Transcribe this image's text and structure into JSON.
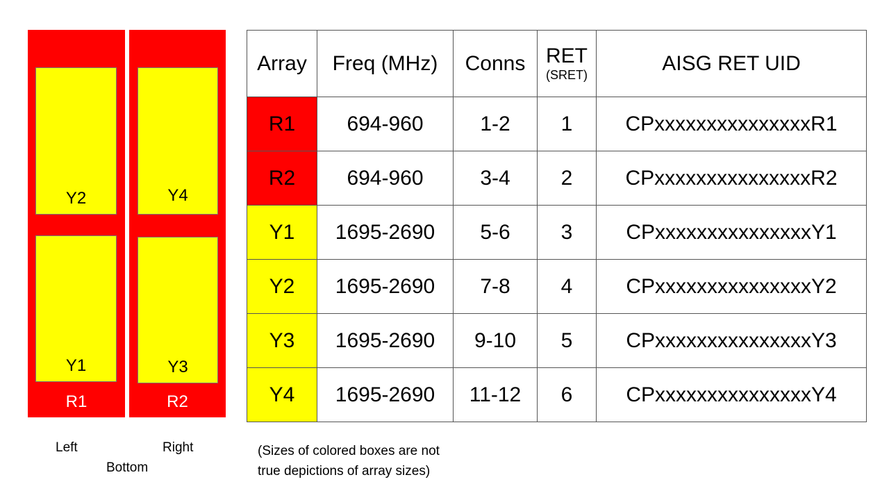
{
  "colors": {
    "red": "#ff0000",
    "yellow": "#ffff00"
  },
  "diagram": {
    "left_panel": {
      "label": "R1",
      "inner": [
        "Y2",
        "Y1"
      ]
    },
    "right_panel": {
      "label": "R2",
      "inner": [
        "Y4",
        "Y3"
      ]
    },
    "captions": {
      "left": "Left",
      "right": "Right",
      "bottom": "Bottom"
    }
  },
  "table": {
    "headers": {
      "array": "Array",
      "freq": "Freq (MHz)",
      "conns": "Conns",
      "ret": "RET",
      "ret_sub": "(SRET)",
      "uid": "AISG RET UID"
    },
    "rows": [
      {
        "array": "R1",
        "color": "#ff0000",
        "freq": "694-960",
        "conns": "1-2",
        "ret": "1",
        "uid": "CPxxxxxxxxxxxxxxxR1"
      },
      {
        "array": "R2",
        "color": "#ff0000",
        "freq": "694-960",
        "conns": "3-4",
        "ret": "2",
        "uid": "CPxxxxxxxxxxxxxxxR2"
      },
      {
        "array": "Y1",
        "color": "#ffff00",
        "freq": "1695-2690",
        "conns": "5-6",
        "ret": "3",
        "uid": "CPxxxxxxxxxxxxxxxY1"
      },
      {
        "array": "Y2",
        "color": "#ffff00",
        "freq": "1695-2690",
        "conns": "7-8",
        "ret": "4",
        "uid": "CPxxxxxxxxxxxxxxxY2"
      },
      {
        "array": "Y3",
        "color": "#ffff00",
        "freq": "1695-2690",
        "conns": "9-10",
        "ret": "5",
        "uid": "CPxxxxxxxxxxxxxxxY3"
      },
      {
        "array": "Y4",
        "color": "#ffff00",
        "freq": "1695-2690",
        "conns": "11-12",
        "ret": "6",
        "uid": "CPxxxxxxxxxxxxxxxY4"
      }
    ]
  },
  "note": {
    "line1": "(Sizes of colored boxes are not",
    "line2": "true depictions of array sizes)"
  }
}
